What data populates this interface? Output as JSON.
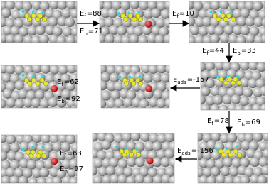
{
  "labels": [
    {
      "main": "E",
      "sub": "f",
      "rest": "=88"
    },
    {
      "main": "E",
      "sub": "b",
      "rest": "=71"
    },
    {
      "main": "E",
      "sub": "f",
      "rest": "=10"
    },
    {
      "main": "E",
      "sub": "f",
      "rest": "=44"
    },
    {
      "main": "E",
      "sub": "b",
      "rest": "=33"
    },
    {
      "main": "E",
      "sub": "ads",
      "rest": "=-157"
    },
    {
      "main": "E",
      "sub": "f",
      "rest": "=62"
    },
    {
      "main": "E",
      "sub": "b",
      "rest": "=92"
    },
    {
      "main": "E",
      "sub": "f",
      "rest": "=78"
    },
    {
      "main": "E",
      "sub": "b",
      "rest": "=69"
    },
    {
      "main": "E",
      "sub": "ads",
      "rest": "=-156"
    },
    {
      "main": "E",
      "sub": "f",
      "rest": "=63"
    },
    {
      "main": "E",
      "sub": "b",
      "rest": "=97"
    }
  ]
}
